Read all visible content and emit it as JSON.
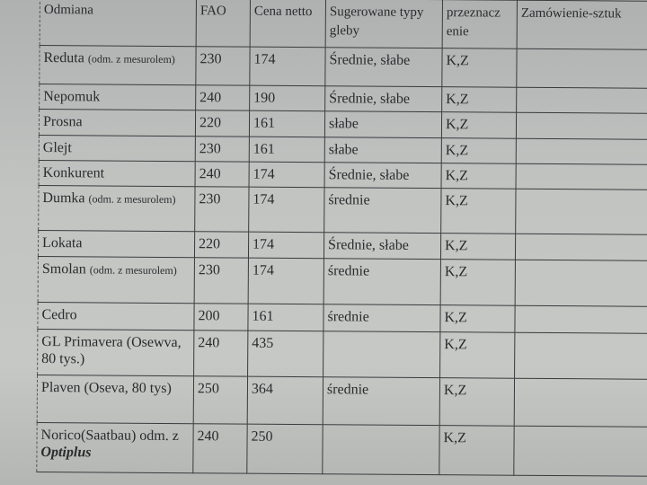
{
  "table": {
    "headers": [
      "Odmiana",
      "FAO",
      "Cena netto",
      "Sugerowane typy gleby",
      "przeznacz enie",
      "Zamówienie-sztuk"
    ],
    "rows": [
      {
        "name": "Reduta",
        "note": "(odm. z mesurolem)",
        "fao": "230",
        "cena": "174",
        "gleba": "Średnie, słabe",
        "przeznaczenie": "K,Z",
        "zamowienie": ""
      },
      {
        "name": "Nepomuk",
        "note": "",
        "fao": "240",
        "cena": "190",
        "gleba": "Średnie, słabe",
        "przeznaczenie": "K,Z",
        "zamowienie": ""
      },
      {
        "name": "Prosna",
        "note": "",
        "fao": "220",
        "cena": "161",
        "gleba": "słabe",
        "przeznaczenie": "K,Z",
        "zamowienie": ""
      },
      {
        "name": "Glejt",
        "note": "",
        "fao": "230",
        "cena": "161",
        "gleba": "słabe",
        "przeznaczenie": "K,Z",
        "zamowienie": ""
      },
      {
        "name": "Konkurent",
        "note": "",
        "fao": "240",
        "cena": "174",
        "gleba": "Średnie, słabe",
        "przeznaczenie": "K,Z",
        "zamowienie": ""
      },
      {
        "name": "Dumka",
        "note": "(odm. z mesurolem)",
        "fao": "230",
        "cena": "174",
        "gleba": "średnie",
        "przeznaczenie": "K,Z",
        "zamowienie": ""
      },
      {
        "name": "Lokata",
        "note": "",
        "fao": "220",
        "cena": "174",
        "gleba": "Średnie, słabe",
        "przeznaczenie": "K,Z",
        "zamowienie": ""
      },
      {
        "name": "Smolan",
        "note": "(odm. z mesurolem)",
        "fao": "230",
        "cena": "174",
        "gleba": "średnie",
        "przeznaczenie": "K,Z",
        "zamowienie": ""
      },
      {
        "name": "Cedro",
        "note": "",
        "fao": "200",
        "cena": "161",
        "gleba": "średnie",
        "przeznaczenie": "K,Z",
        "zamowienie": ""
      },
      {
        "name": "GL Primavera (Osewva, 80 tys.)",
        "note": "",
        "fao": "240",
        "cena": "435",
        "gleba": "",
        "przeznaczenie": "K,Z",
        "zamowienie": ""
      },
      {
        "name": "Plaven (Oseva, 80 tys)",
        "note": "",
        "fao": "250",
        "cena": "364",
        "gleba": "średnie",
        "przeznaczenie": "K,Z",
        "zamowienie": ""
      },
      {
        "name": "Norico(Saatbau) odm. z ",
        "note": "Optiplus",
        "fao": "240",
        "cena": "250",
        "gleba": "",
        "przeznaczenie": "K,Z",
        "zamowienie": ""
      }
    ]
  }
}
